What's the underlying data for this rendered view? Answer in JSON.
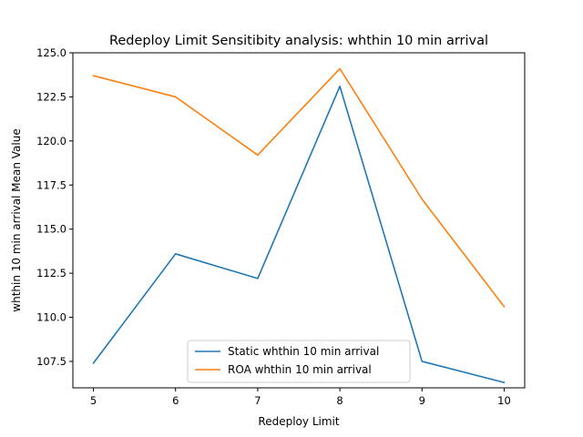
{
  "chart_data": {
    "type": "line",
    "title": "Redeploy Limit Sensitibity analysis: whthin 10 min arrival",
    "xlabel": "Redeploy Limit",
    "ylabel": "whthin 10 min arrival Mean Value",
    "x": [
      5,
      6,
      7,
      8,
      9,
      10
    ],
    "xlim": [
      4.75,
      10.25
    ],
    "ylim": [
      106.0,
      125.0
    ],
    "xticks": [
      "5",
      "6",
      "7",
      "8",
      "9",
      "10"
    ],
    "yticks": [
      "107.5",
      "110.0",
      "112.5",
      "115.0",
      "117.5",
      "120.0",
      "122.5",
      "125.0"
    ],
    "series": [
      {
        "name": "Static whthin 10 min arrival",
        "color": "#1f77b4",
        "values": [
          107.4,
          113.6,
          112.2,
          123.1,
          107.5,
          106.3
        ]
      },
      {
        "name": "ROA whthin 10 min arrival",
        "color": "#ff7f0e",
        "values": [
          123.7,
          122.5,
          119.2,
          124.1,
          116.7,
          110.6
        ]
      }
    ],
    "legend": "bottom-center",
    "grid": false
  }
}
